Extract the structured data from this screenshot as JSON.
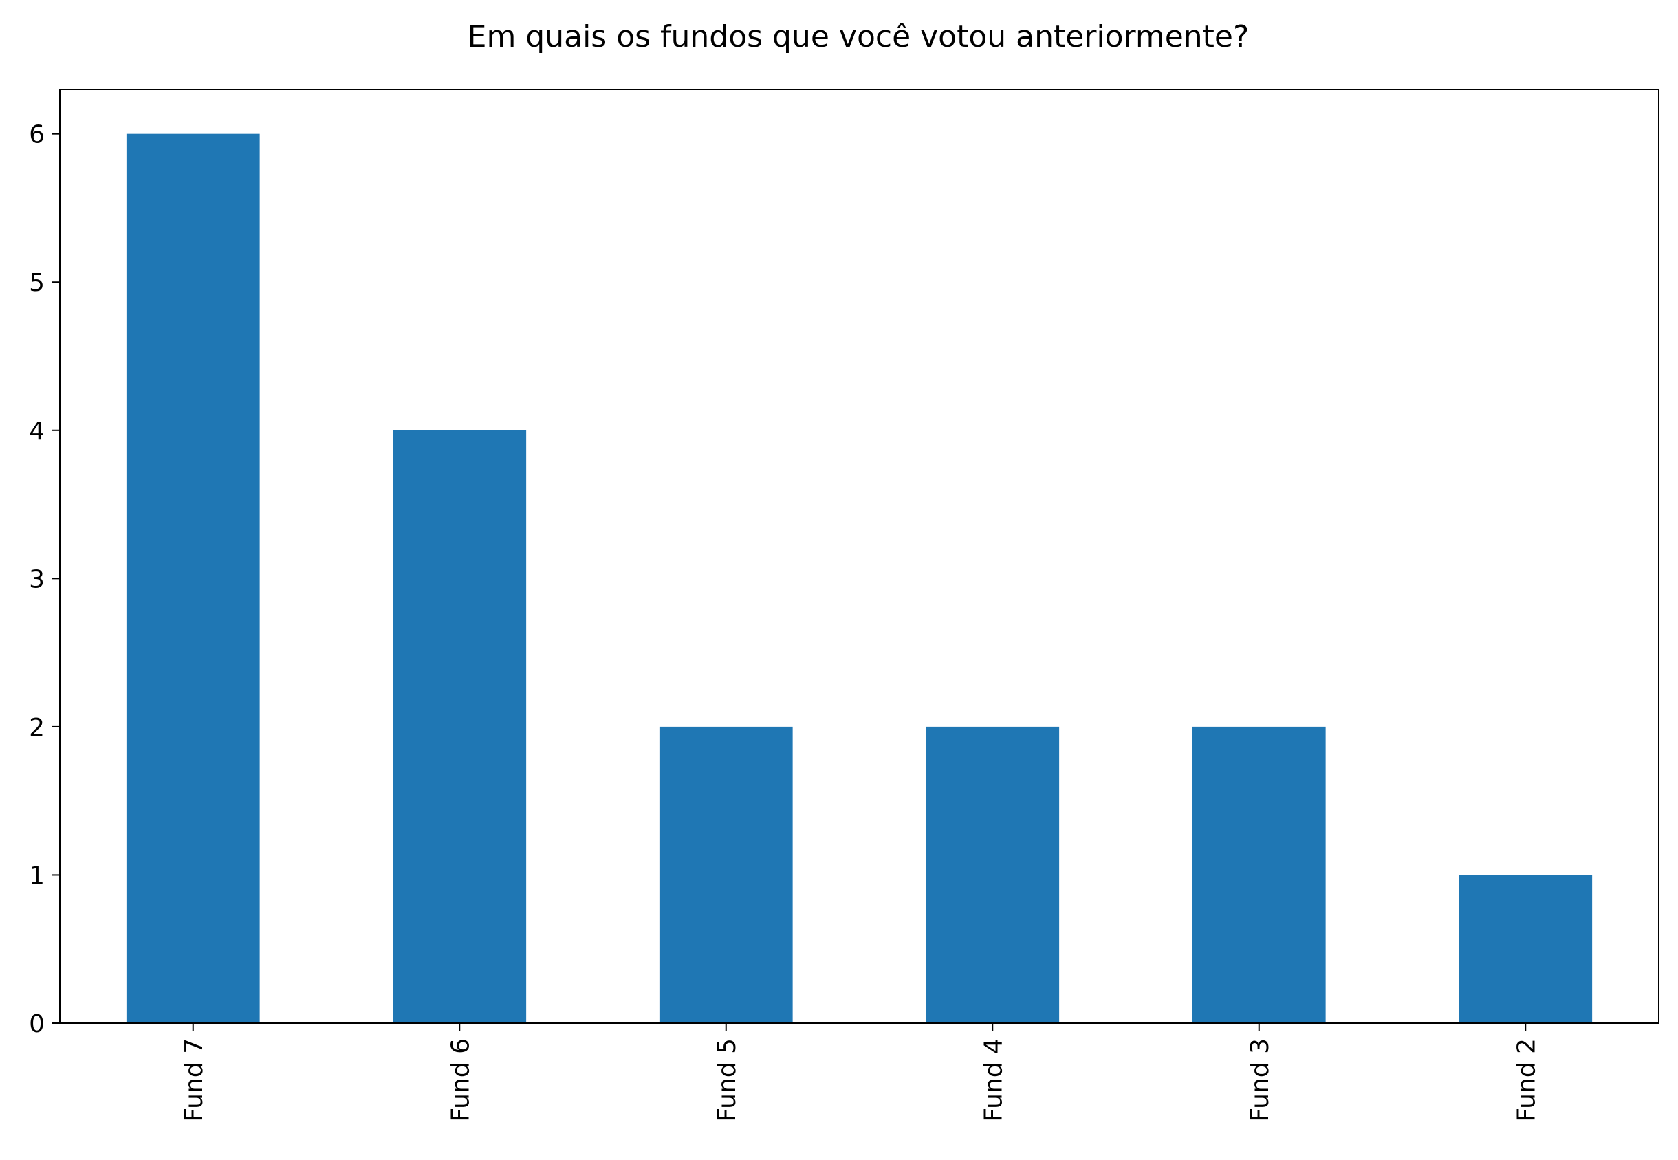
{
  "chart_data": {
    "type": "bar",
    "title": "Em quais os fundos que você votou anteriormente?",
    "xlabel": "",
    "ylabel": "",
    "categories": [
      "Fund 7",
      "Fund 6",
      "Fund 5",
      "Fund 4",
      "Fund 3",
      "Fund 2"
    ],
    "values": [
      6,
      4,
      2,
      2,
      2,
      1
    ],
    "yticks": [
      "0",
      "1",
      "2",
      "3",
      "4",
      "5",
      "6"
    ],
    "ylim": [
      0,
      6.3
    ],
    "grid": false,
    "legend": "none",
    "bar_color": "#1f77b4",
    "x_tick_rotation": "vertical"
  }
}
